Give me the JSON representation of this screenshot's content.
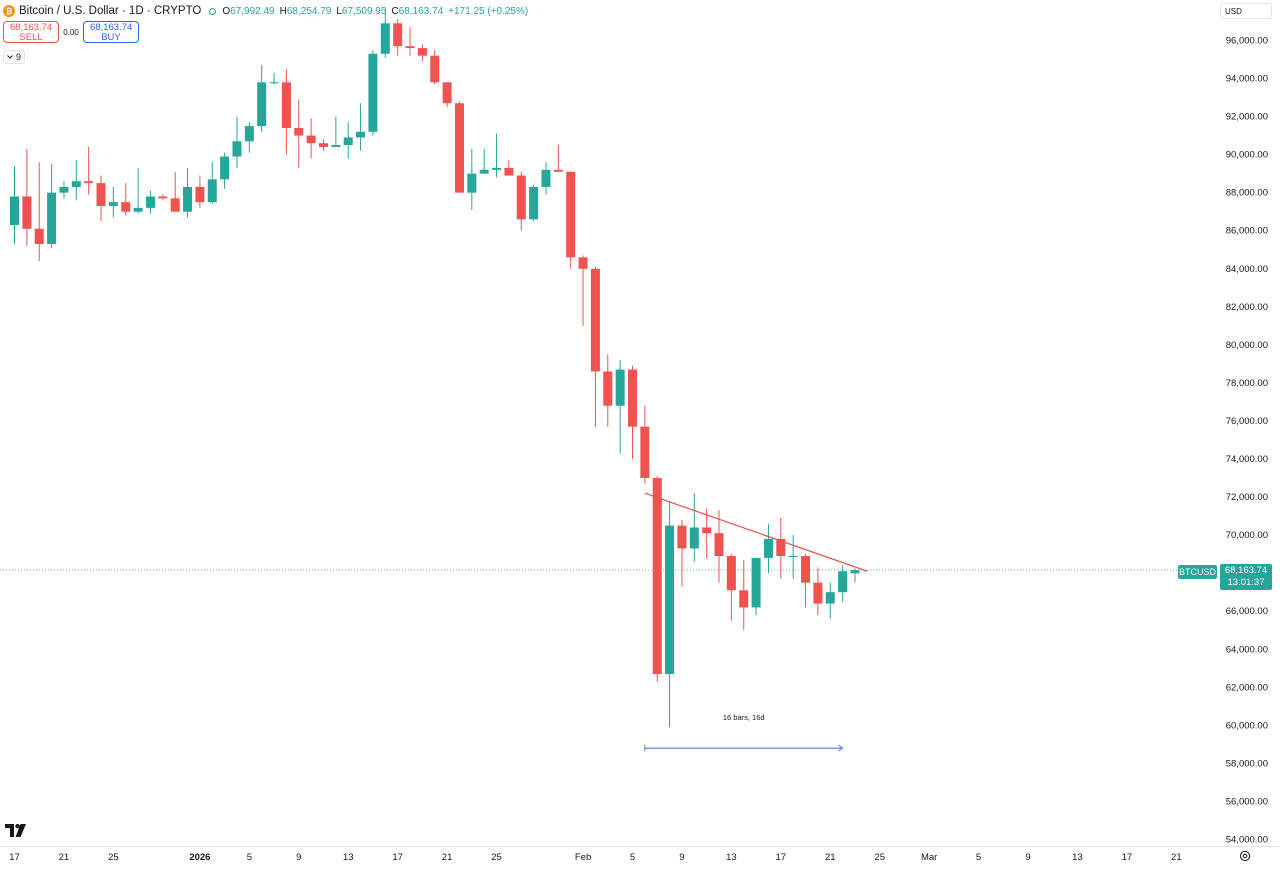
{
  "legend": {
    "coin_glyph": "₿",
    "symbol": "Bitcoin / U.S. Dollar · 1D · CRYPTO",
    "open_label": "O",
    "open": "67,992.49",
    "high_label": "H",
    "high": "68,254.79",
    "low_label": "L",
    "low": "67,509.95",
    "close_label": "C",
    "close": "68,163.74",
    "change": "+171.25 (+0.25%)"
  },
  "trade": {
    "sell_price": "68,163.74",
    "sell_label": "SELL",
    "spread": "0.00",
    "buy_price": "68,163.74",
    "buy_label": "BUY"
  },
  "indicators_count": "9",
  "currency": "USD",
  "price_tag": {
    "symbol": "BTCUSD",
    "price": "68,163.74",
    "countdown": "13:01:37"
  },
  "measure_label": "16 bars, 16d",
  "colors": {
    "up": "#26a69a",
    "down": "#ef5350",
    "trendline": "#e5534b",
    "measure": "#5b7be0",
    "last_price_line": "#26a69a"
  },
  "chart_data": {
    "type": "candlestick",
    "ylim": [
      53000,
      98500
    ],
    "y_ticks": [
      54000,
      56000,
      58000,
      60000,
      62000,
      64000,
      66000,
      68000,
      70000,
      72000,
      74000,
      76000,
      78000,
      80000,
      82000,
      84000,
      86000,
      88000,
      90000,
      92000,
      94000,
      96000
    ],
    "y_tick_labels": [
      "54,000.00",
      "56,000.00",
      "58,000.00",
      "60,000.00",
      "62,000.00",
      "64,000.00",
      "66,000.00",
      "68,000.00",
      "70,000.00",
      "72,000.00",
      "74,000.00",
      "76,000.00",
      "78,000.00",
      "80,000.00",
      "82,000.00",
      "84,000.00",
      "86,000.00",
      "88,000.00",
      "90,000.00",
      "92,000.00",
      "94,000.00",
      "96,000.00"
    ],
    "x_ticks": [
      {
        "day": 0,
        "label": "17"
      },
      {
        "day": 4,
        "label": "21"
      },
      {
        "day": 8,
        "label": "25"
      },
      {
        "day": 15,
        "label": "2026"
      },
      {
        "day": 19,
        "label": "5"
      },
      {
        "day": 23,
        "label": "9"
      },
      {
        "day": 27,
        "label": "13"
      },
      {
        "day": 31,
        "label": "17"
      },
      {
        "day": 35,
        "label": "21"
      },
      {
        "day": 39,
        "label": "25"
      },
      {
        "day": 46,
        "label": "Feb"
      },
      {
        "day": 50,
        "label": "5"
      },
      {
        "day": 54,
        "label": "9"
      },
      {
        "day": 58,
        "label": "13"
      },
      {
        "day": 62,
        "label": "17"
      },
      {
        "day": 66,
        "label": "21"
      },
      {
        "day": 70,
        "label": "25"
      },
      {
        "day": 74,
        "label": "Mar"
      },
      {
        "day": 78,
        "label": "5"
      },
      {
        "day": 82,
        "label": "9"
      },
      {
        "day": 86,
        "label": "13"
      },
      {
        "day": 90,
        "label": "17"
      },
      {
        "day": 94,
        "label": "21"
      }
    ],
    "bold_x_labels": [
      "2026"
    ],
    "candles": [
      [
        86300,
        89400,
        85300,
        87800
      ],
      [
        87800,
        90300,
        85200,
        86100
      ],
      [
        86100,
        89600,
        84400,
        85300
      ],
      [
        85300,
        89500,
        85100,
        88000
      ],
      [
        88000,
        88600,
        87700,
        88300
      ],
      [
        88300,
        89700,
        87600,
        88600
      ],
      [
        88600,
        90400,
        87900,
        88500
      ],
      [
        88500,
        88900,
        86500,
        87300
      ],
      [
        87300,
        88300,
        86700,
        87500
      ],
      [
        87500,
        88500,
        86800,
        87000
      ],
      [
        87000,
        89300,
        86900,
        87200
      ],
      [
        87200,
        88100,
        86900,
        87800
      ],
      [
        87800,
        87900,
        87600,
        87700
      ],
      [
        87700,
        89100,
        87000,
        87000
      ],
      [
        87000,
        89300,
        86700,
        88300
      ],
      [
        88300,
        88900,
        87200,
        87500
      ],
      [
        87500,
        89600,
        87400,
        88700
      ],
      [
        88700,
        90100,
        88200,
        89900
      ],
      [
        89900,
        92000,
        89300,
        90700
      ],
      [
        90700,
        91700,
        90100,
        91500
      ],
      [
        91500,
        94700,
        91200,
        93800
      ],
      [
        93800,
        94300,
        93700,
        93800
      ],
      [
        93800,
        94500,
        90000,
        91400
      ],
      [
        91400,
        92900,
        89300,
        91000
      ],
      [
        91000,
        91900,
        89800,
        90600
      ],
      [
        90600,
        90800,
        90200,
        90400
      ],
      [
        90400,
        92000,
        90400,
        90500
      ],
      [
        90500,
        91700,
        89800,
        90900
      ],
      [
        90900,
        92700,
        90200,
        91200
      ],
      [
        91200,
        95500,
        91000,
        95300
      ],
      [
        95300,
        97700,
        95100,
        96900
      ],
      [
        96900,
        97100,
        95200,
        95700
      ],
      [
        95700,
        96700,
        95200,
        95600
      ],
      [
        95600,
        95800,
        94900,
        95200
      ],
      [
        95200,
        95500,
        93700,
        93800
      ],
      [
        93800,
        93800,
        92500,
        92700
      ],
      [
        92700,
        92800,
        88300,
        88000
      ],
      [
        88000,
        90300,
        87100,
        89000
      ],
      [
        89000,
        90300,
        89000,
        89200
      ],
      [
        89200,
        91100,
        88800,
        89300
      ],
      [
        89300,
        89700,
        88900,
        88900
      ],
      [
        88900,
        89100,
        86000,
        86600
      ],
      [
        86600,
        88400,
        86500,
        88300
      ],
      [
        88300,
        89600,
        87900,
        89200
      ],
      [
        89200,
        90500,
        89100,
        89100
      ],
      [
        89100,
        89100,
        84000,
        84600
      ],
      [
        84600,
        84700,
        81000,
        84000
      ],
      [
        84000,
        84100,
        75700,
        78600
      ],
      [
        78600,
        79500,
        75700,
        76800
      ],
      [
        76800,
        79200,
        74300,
        78700
      ],
      [
        78700,
        78900,
        74000,
        75700
      ],
      [
        75700,
        76800,
        72700,
        73000
      ],
      [
        73000,
        73100,
        62300,
        62700
      ],
      [
        62700,
        71800,
        59900,
        70500
      ],
      [
        70500,
        70800,
        67300,
        69300
      ],
      [
        69300,
        72200,
        68600,
        70400
      ],
      [
        70400,
        71400,
        68800,
        70100
      ],
      [
        70100,
        71300,
        67500,
        68900
      ],
      [
        68900,
        69000,
        65500,
        67100
      ],
      [
        67100,
        68700,
        65000,
        66200
      ],
      [
        66200,
        68700,
        65800,
        68800
      ],
      [
        68800,
        70600,
        68000,
        69800
      ],
      [
        69800,
        70900,
        67700,
        68900
      ],
      [
        68900,
        70000,
        67700,
        68900
      ],
      [
        68900,
        69000,
        66200,
        67500
      ],
      [
        67500,
        68300,
        65800,
        66400
      ],
      [
        66400,
        67500,
        65600,
        67000
      ],
      [
        67000,
        68400,
        66500,
        68100
      ],
      [
        67990,
        68250,
        67510,
        68160
      ]
    ],
    "trendline": {
      "start_day": 51,
      "start_price": 72200,
      "end_day": 69,
      "end_price": 68100
    },
    "last_price": 68163.74,
    "measure": {
      "start_day": 51,
      "end_day": 67,
      "price": 58800,
      "label": "16 bars, 16d"
    }
  }
}
